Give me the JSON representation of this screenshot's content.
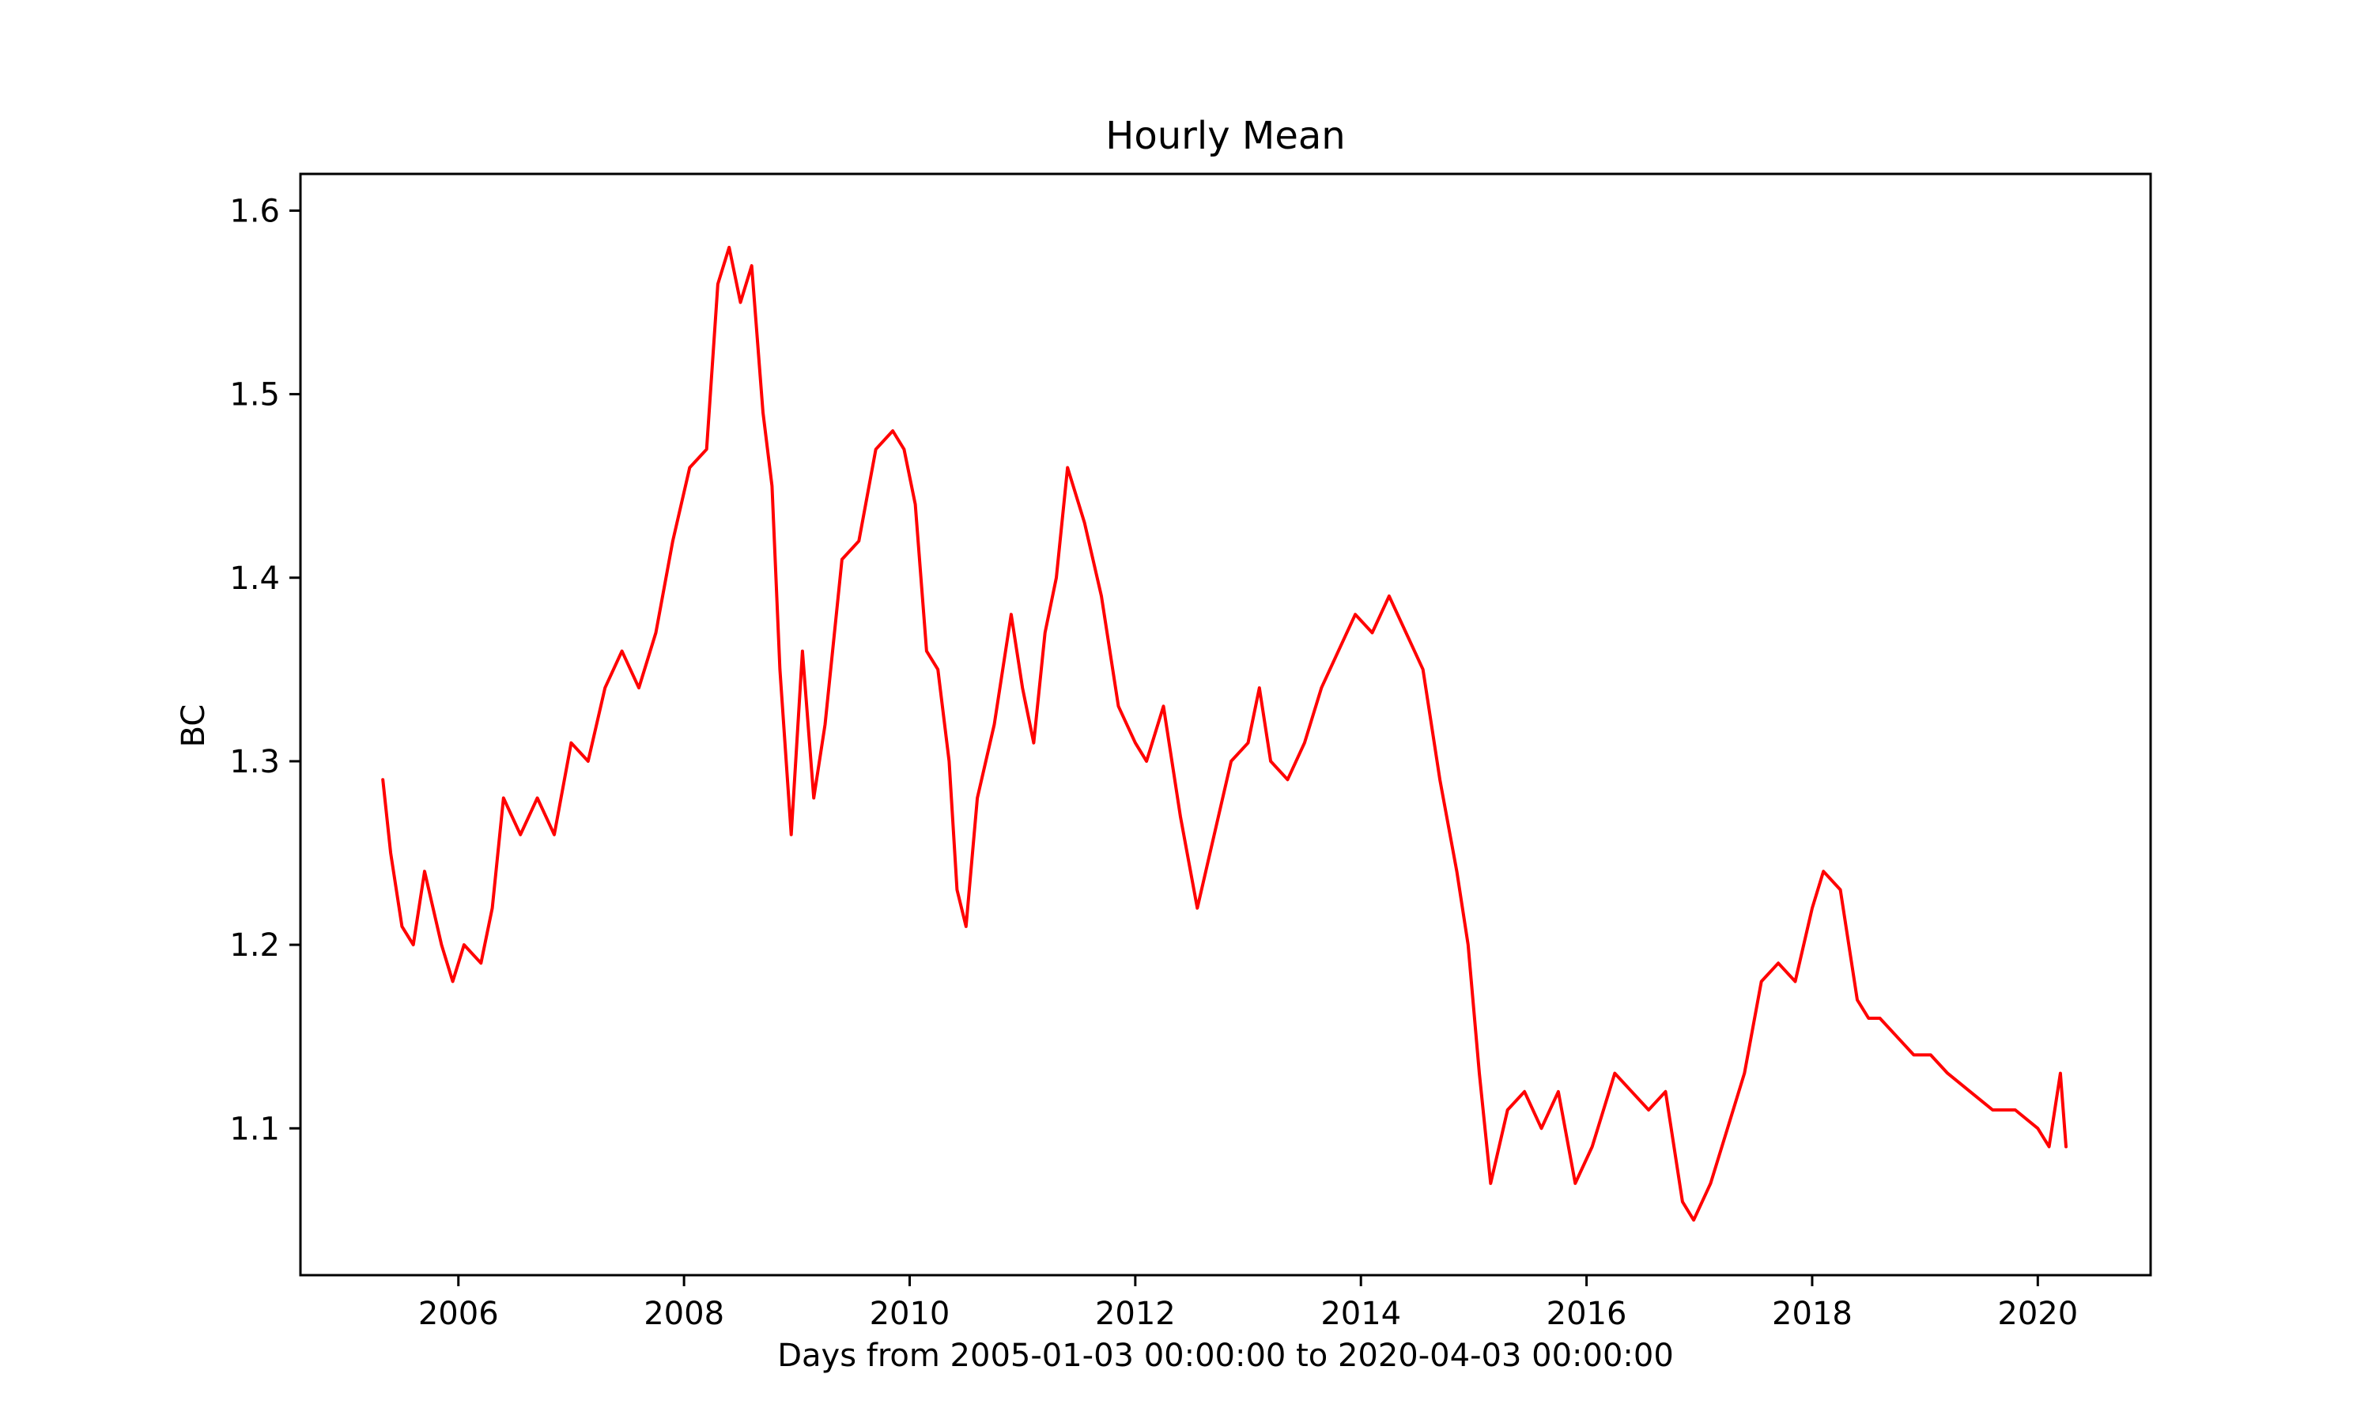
{
  "chart_data": {
    "type": "line",
    "title": "Hourly Mean",
    "xlabel": "Days from 2005-01-03 00:00:00 to 2020-04-03 00:00:00",
    "ylabel": "BC",
    "xlim": [
      2004.6,
      2021.0
    ],
    "ylim": [
      1.02,
      1.62
    ],
    "grid": false,
    "x_ticks": [
      2006,
      2008,
      2010,
      2012,
      2014,
      2016,
      2018,
      2020
    ],
    "x_tick_labels": [
      "2006",
      "2008",
      "2010",
      "2012",
      "2014",
      "2016",
      "2018",
      "2020"
    ],
    "y_ticks": [
      1.1,
      1.2,
      1.3,
      1.4,
      1.5,
      1.6
    ],
    "y_tick_labels": [
      "1.1",
      "1.2",
      "1.3",
      "1.4",
      "1.5",
      "1.6"
    ],
    "series": [
      {
        "color": "#ff0000",
        "x": [
          2005.33,
          2005.4,
          2005.5,
          2005.6,
          2005.7,
          2005.85,
          2005.95,
          2006.05,
          2006.2,
          2006.3,
          2006.4,
          2006.55,
          2006.7,
          2006.85,
          2007.0,
          2007.15,
          2007.3,
          2007.45,
          2007.6,
          2007.75,
          2007.9,
          2008.05,
          2008.2,
          2008.3,
          2008.4,
          2008.5,
          2008.6,
          2008.7,
          2008.78,
          2008.85,
          2008.95,
          2009.05,
          2009.15,
          2009.25,
          2009.4,
          2009.55,
          2009.7,
          2009.85,
          2009.95,
          2010.05,
          2010.15,
          2010.25,
          2010.35,
          2010.42,
          2010.5,
          2010.6,
          2010.75,
          2010.9,
          2011.0,
          2011.1,
          2011.2,
          2011.3,
          2011.4,
          2011.55,
          2011.7,
          2011.85,
          2012.0,
          2012.1,
          2012.25,
          2012.4,
          2012.55,
          2012.7,
          2012.85,
          2013.0,
          2013.1,
          2013.2,
          2013.35,
          2013.5,
          2013.65,
          2013.8,
          2013.95,
          2014.1,
          2014.25,
          2014.4,
          2014.55,
          2014.7,
          2014.85,
          2014.95,
          2015.05,
          2015.15,
          2015.3,
          2015.45,
          2015.6,
          2015.75,
          2015.9,
          2016.05,
          2016.25,
          2016.4,
          2016.55,
          2016.7,
          2016.85,
          2016.95,
          2017.1,
          2017.25,
          2017.4,
          2017.55,
          2017.7,
          2017.85,
          2018.0,
          2018.1,
          2018.25,
          2018.4,
          2018.5,
          2018.6,
          2018.75,
          2018.9,
          2019.05,
          2019.2,
          2019.4,
          2019.6,
          2019.8,
          2020.0,
          2020.1,
          2020.2,
          2020.25
        ],
        "y": [
          1.29,
          1.25,
          1.21,
          1.2,
          1.24,
          1.2,
          1.18,
          1.2,
          1.19,
          1.22,
          1.28,
          1.26,
          1.28,
          1.26,
          1.31,
          1.3,
          1.34,
          1.36,
          1.34,
          1.37,
          1.42,
          1.46,
          1.47,
          1.56,
          1.58,
          1.55,
          1.57,
          1.49,
          1.45,
          1.35,
          1.26,
          1.36,
          1.28,
          1.32,
          1.41,
          1.42,
          1.47,
          1.48,
          1.47,
          1.44,
          1.36,
          1.35,
          1.3,
          1.23,
          1.21,
          1.28,
          1.32,
          1.38,
          1.34,
          1.31,
          1.37,
          1.4,
          1.46,
          1.43,
          1.39,
          1.33,
          1.31,
          1.3,
          1.33,
          1.27,
          1.22,
          1.26,
          1.3,
          1.31,
          1.34,
          1.3,
          1.29,
          1.31,
          1.34,
          1.36,
          1.38,
          1.37,
          1.39,
          1.37,
          1.35,
          1.29,
          1.24,
          1.2,
          1.13,
          1.07,
          1.11,
          1.12,
          1.1,
          1.12,
          1.07,
          1.09,
          1.13,
          1.12,
          1.11,
          1.12,
          1.06,
          1.05,
          1.07,
          1.1,
          1.13,
          1.18,
          1.19,
          1.18,
          1.22,
          1.24,
          1.23,
          1.17,
          1.16,
          1.16,
          1.15,
          1.14,
          1.14,
          1.13,
          1.12,
          1.11,
          1.11,
          1.1,
          1.09,
          1.13,
          1.09
        ]
      }
    ]
  }
}
